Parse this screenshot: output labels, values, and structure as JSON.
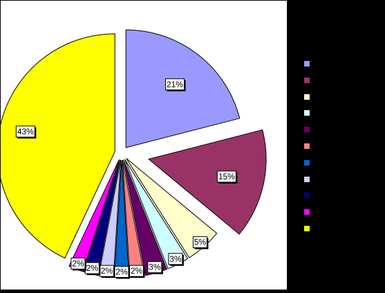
{
  "chart_data": {
    "type": "pie",
    "exploded": true,
    "labels_show": "percent",
    "legend_position": "right",
    "slices": [
      {
        "value": 21,
        "label": "21%",
        "color": "#9999FF"
      },
      {
        "value": 15,
        "label": "15%",
        "color": "#993366"
      },
      {
        "value": 5,
        "label": "5%",
        "color": "#FFFFCC"
      },
      {
        "value": 3,
        "label": "3%",
        "color": "#CCFFFF"
      },
      {
        "value": 3,
        "label": "3%",
        "color": "#660066"
      },
      {
        "value": 2,
        "label": "2%",
        "color": "#FF8080"
      },
      {
        "value": 2,
        "label": "2%",
        "color": "#0066CC"
      },
      {
        "value": 2,
        "label": "2%",
        "color": "#CCCCFF"
      },
      {
        "value": 2,
        "label": "2%",
        "color": "#000080"
      },
      {
        "value": 2,
        "label": "2%",
        "color": "#FF00FF"
      },
      {
        "value": 43,
        "label": "43%",
        "color": "#FFFF00"
      }
    ]
  }
}
